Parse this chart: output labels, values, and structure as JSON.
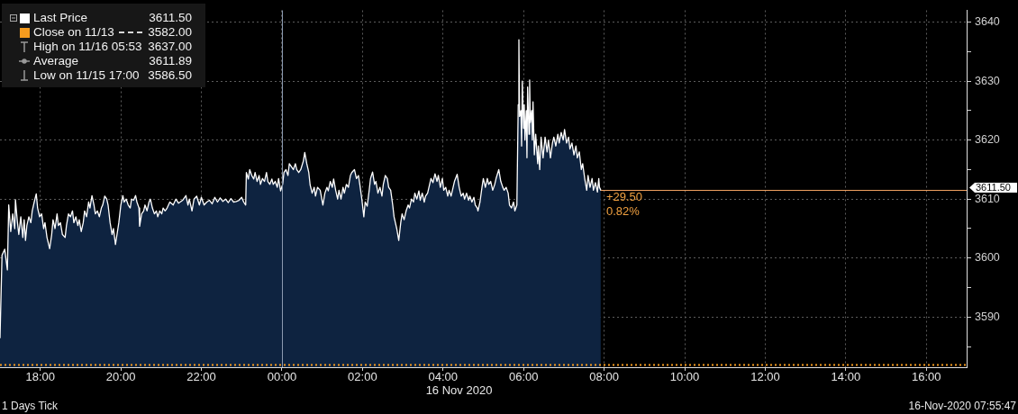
{
  "chart_data": {
    "type": "area",
    "x": [
      "2020-11-15T17:00",
      "2020-11-15T17:03",
      "2020-11-15T17:07",
      "2020-11-15T17:11",
      "2020-11-15T17:13",
      "2020-11-15T17:16",
      "2020-11-15T17:19",
      "2020-11-15T17:22",
      "2020-11-15T17:23",
      "2020-11-15T17:26",
      "2020-11-15T17:28",
      "2020-11-15T17:31",
      "2020-11-15T17:34",
      "2020-11-15T17:36",
      "2020-11-15T17:38",
      "2020-11-15T17:40",
      "2020-11-15T17:43",
      "2020-11-15T17:46",
      "2020-11-15T17:48",
      "2020-11-15T17:51",
      "2020-11-15T17:54",
      "2020-11-15T17:56",
      "2020-11-15T17:59",
      "2020-11-15T18:02",
      "2020-11-15T18:05",
      "2020-11-15T18:07",
      "2020-11-15T18:10",
      "2020-11-15T18:14",
      "2020-11-15T18:17",
      "2020-11-15T18:19",
      "2020-11-15T18:22",
      "2020-11-15T18:25",
      "2020-11-15T18:27",
      "2020-11-15T18:30",
      "2020-11-15T18:33",
      "2020-11-15T18:37",
      "2020-11-15T18:39",
      "2020-11-15T18:42",
      "2020-11-15T18:45",
      "2020-11-15T18:48",
      "2020-11-15T18:50",
      "2020-11-15T18:53",
      "2020-11-15T18:56",
      "2020-11-15T18:58",
      "2020-11-15T19:01",
      "2020-11-15T19:04",
      "2020-11-15T19:06",
      "2020-11-15T19:09",
      "2020-11-15T19:12",
      "2020-11-15T19:14",
      "2020-11-15T19:17",
      "2020-11-15T19:20",
      "2020-11-15T19:22",
      "2020-11-15T19:25",
      "2020-11-15T19:28",
      "2020-11-15T19:31",
      "2020-11-15T19:33",
      "2020-11-15T19:36",
      "2020-11-15T19:39",
      "2020-11-15T19:41",
      "2020-11-15T19:44",
      "2020-11-15T19:47",
      "2020-11-15T19:49",
      "2020-11-15T19:52",
      "2020-11-15T19:55",
      "2020-11-15T19:57",
      "2020-11-15T20:00",
      "2020-11-15T20:03",
      "2020-11-15T20:05",
      "2020-11-15T20:08",
      "2020-11-15T20:11",
      "2020-11-15T20:14",
      "2020-11-15T20:16",
      "2020-11-15T20:19",
      "2020-11-15T20:22",
      "2020-11-15T20:24",
      "2020-11-15T20:27",
      "2020-11-15T20:28",
      "2020-11-15T20:31",
      "2020-11-15T20:34",
      "2020-11-15T20:36",
      "2020-11-15T20:39",
      "2020-11-15T20:42",
      "2020-11-15T20:44",
      "2020-11-15T20:47",
      "2020-11-15T20:50",
      "2020-11-15T20:53",
      "2020-11-15T20:55",
      "2020-11-15T20:58",
      "2020-11-15T21:01",
      "2020-11-15T21:03",
      "2020-11-15T21:06",
      "2020-11-15T21:09",
      "2020-11-15T21:13",
      "2020-11-15T21:18",
      "2020-11-15T21:22",
      "2020-11-15T21:26",
      "2020-11-15T21:32",
      "2020-11-15T21:37",
      "2020-11-15T21:40",
      "2020-11-15T21:42",
      "2020-11-15T21:46",
      "2020-11-15T21:49",
      "2020-11-15T21:53",
      "2020-11-15T21:57",
      "2020-11-15T22:00",
      "2020-11-15T22:04",
      "2020-11-15T22:08",
      "2020-11-15T22:12",
      "2020-11-15T22:16",
      "2020-11-15T22:20",
      "2020-11-15T22:24",
      "2020-11-15T22:28",
      "2020-11-15T22:32",
      "2020-11-15T22:36",
      "2020-11-15T22:40",
      "2020-11-15T22:44",
      "2020-11-15T22:48",
      "2020-11-15T22:52",
      "2020-11-15T22:56",
      "2020-11-15T23:00",
      "2020-11-15T23:03",
      "2020-11-15T23:06",
      "2020-11-15T23:07",
      "2020-11-15T23:10",
      "2020-11-15T23:12",
      "2020-11-15T23:15",
      "2020-11-15T23:18",
      "2020-11-15T23:20",
      "2020-11-15T23:23",
      "2020-11-15T23:26",
      "2020-11-15T23:28",
      "2020-11-15T23:31",
      "2020-11-15T23:34",
      "2020-11-15T23:37",
      "2020-11-15T23:39",
      "2020-11-15T23:42",
      "2020-11-15T23:45",
      "2020-11-15T23:47",
      "2020-11-15T23:50",
      "2020-11-15T23:53",
      "2020-11-15T23:55",
      "2020-11-15T23:58",
      "2020-11-16T00:01",
      "2020-11-16T00:03",
      "2020-11-16T00:06",
      "2020-11-16T00:09",
      "2020-11-16T00:11",
      "2020-11-16T00:14",
      "2020-11-16T00:17",
      "2020-11-16T00:20",
      "2020-11-16T00:22",
      "2020-11-16T00:25",
      "2020-11-16T00:28",
      "2020-11-16T00:32",
      "2020-11-16T00:34",
      "2020-11-16T00:37",
      "2020-11-16T00:40",
      "2020-11-16T00:42",
      "2020-11-16T00:45",
      "2020-11-16T00:48",
      "2020-11-16T00:50",
      "2020-11-16T00:53",
      "2020-11-16T00:57",
      "2020-11-16T01:01",
      "2020-11-16T01:04",
      "2020-11-16T01:07",
      "2020-11-16T01:09",
      "2020-11-16T01:12",
      "2020-11-16T01:15",
      "2020-11-16T01:17",
      "2020-11-16T01:20",
      "2020-11-16T01:23",
      "2020-11-16T01:25",
      "2020-11-16T01:28",
      "2020-11-16T01:31",
      "2020-11-16T01:33",
      "2020-11-16T01:36",
      "2020-11-16T01:39",
      "2020-11-16T01:42",
      "2020-11-16T01:44",
      "2020-11-16T01:48",
      "2020-11-16T01:51",
      "2020-11-16T01:54",
      "2020-11-16T01:56",
      "2020-11-16T01:59",
      "2020-11-16T02:02",
      "2020-11-16T02:04",
      "2020-11-16T02:07",
      "2020-11-16T02:10",
      "2020-11-16T02:12",
      "2020-11-16T02:15",
      "2020-11-16T02:18",
      "2020-11-16T02:20",
      "2020-11-16T02:23",
      "2020-11-16T02:26",
      "2020-11-16T02:29",
      "2020-11-16T02:31",
      "2020-11-16T02:34",
      "2020-11-16T02:37",
      "2020-11-16T02:39",
      "2020-11-16T02:42",
      "2020-11-16T02:45",
      "2020-11-16T02:47",
      "2020-11-16T02:51",
      "2020-11-16T02:54",
      "2020-11-16T02:57",
      "2020-11-16T02:59",
      "2020-11-16T03:02",
      "2020-11-16T03:05",
      "2020-11-16T03:08",
      "2020-11-16T03:10",
      "2020-11-16T03:13",
      "2020-11-16T03:16",
      "2020-11-16T03:18",
      "2020-11-16T03:21",
      "2020-11-16T03:24",
      "2020-11-16T03:26",
      "2020-11-16T03:29",
      "2020-11-16T03:32",
      "2020-11-16T03:34",
      "2020-11-16T03:37",
      "2020-11-16T03:40",
      "2020-11-16T03:42",
      "2020-11-16T03:45",
      "2020-11-16T03:48",
      "2020-11-16T03:51",
      "2020-11-16T03:53",
      "2020-11-16T03:56",
      "2020-11-16T03:59",
      "2020-11-16T04:01",
      "2020-11-16T04:04",
      "2020-11-16T04:07",
      "2020-11-16T04:09",
      "2020-11-16T04:12",
      "2020-11-16T04:15",
      "2020-11-16T04:17",
      "2020-11-16T04:21",
      "2020-11-16T04:24",
      "2020-11-16T04:27",
      "2020-11-16T04:30",
      "2020-11-16T04:32",
      "2020-11-16T04:35",
      "2020-11-16T04:38",
      "2020-11-16T04:40",
      "2020-11-16T04:43",
      "2020-11-16T04:46",
      "2020-11-16T04:48",
      "2020-11-16T04:51",
      "2020-11-16T04:52",
      "2020-11-16T04:55",
      "2020-11-16T04:58",
      "2020-11-16T05:00",
      "2020-11-16T05:03",
      "2020-11-16T05:06",
      "2020-11-16T05:08",
      "2020-11-16T05:11",
      "2020-11-16T05:14",
      "2020-11-16T05:17",
      "2020-11-16T05:19",
      "2020-11-16T05:23",
      "2020-11-16T05:26",
      "2020-11-16T05:29",
      "2020-11-16T05:31",
      "2020-11-16T05:34",
      "2020-11-16T05:37",
      "2020-11-16T05:39",
      "2020-11-16T05:42",
      "2020-11-16T05:45",
      "2020-11-16T05:47",
      "2020-11-16T05:50",
      "2020-11-16T05:52",
      "2020-11-16T05:53",
      "2020-11-16T05:54",
      "2020-11-16T05:56",
      "2020-11-16T05:57",
      "2020-11-16T05:58",
      "2020-11-16T06:00",
      "2020-11-16T06:01",
      "2020-11-16T06:02",
      "2020-11-16T06:04",
      "2020-11-16T06:05",
      "2020-11-16T06:06",
      "2020-11-16T06:08",
      "2020-11-16T06:09",
      "2020-11-16T06:10",
      "2020-11-16T06:12",
      "2020-11-16T06:13",
      "2020-11-16T06:14",
      "2020-11-16T06:16",
      "2020-11-16T06:18",
      "2020-11-16T06:21",
      "2020-11-16T06:22",
      "2020-11-16T06:24",
      "2020-11-16T06:26",
      "2020-11-16T06:29",
      "2020-11-16T06:32",
      "2020-11-16T06:35",
      "2020-11-16T06:37",
      "2020-11-16T06:40",
      "2020-11-16T06:43",
      "2020-11-16T06:45",
      "2020-11-16T06:48",
      "2020-11-16T06:51",
      "2020-11-16T06:53",
      "2020-11-16T06:56",
      "2020-11-16T06:59",
      "2020-11-16T07:01",
      "2020-11-16T07:04",
      "2020-11-16T07:07",
      "2020-11-16T07:09",
      "2020-11-16T07:12",
      "2020-11-16T07:15",
      "2020-11-16T07:18",
      "2020-11-16T07:20",
      "2020-11-16T07:23",
      "2020-11-16T07:26",
      "2020-11-16T07:28",
      "2020-11-16T07:31",
      "2020-11-16T07:34",
      "2020-11-16T07:36",
      "2020-11-16T07:39",
      "2020-11-16T07:42",
      "2020-11-16T07:44",
      "2020-11-16T07:47",
      "2020-11-16T07:50",
      "2020-11-16T07:52",
      "2020-11-16T07:53",
      "2020-11-16T07:55"
    ],
    "series": [
      {
        "name": "Last Price",
        "color": "#ffffff",
        "values": [
          3586.5,
          3600.5,
          3601.5,
          3598,
          3609,
          3604.5,
          3607.5,
          3605,
          3609.9,
          3606,
          3604,
          3607,
          3603.5,
          3606.5,
          3603,
          3605.5,
          3607,
          3606,
          3608,
          3609.5,
          3610.9,
          3608.5,
          3607,
          3607.5,
          3605,
          3606,
          3603.5,
          3601.6,
          3604,
          3606.5,
          3605,
          3607.5,
          3605.5,
          3606,
          3604,
          3603.5,
          3605.5,
          3607.5,
          3607,
          3608,
          3606,
          3607,
          3605.5,
          3606.5,
          3604.5,
          3606,
          3608,
          3607,
          3609.5,
          3608.5,
          3610.6,
          3609,
          3607.5,
          3608,
          3607,
          3608.5,
          3609,
          3610.5,
          3610,
          3609,
          3606,
          3604,
          3605,
          3602.3,
          3604.5,
          3606,
          3609,
          3610.6,
          3609.5,
          3610,
          3609,
          3608.5,
          3610,
          3609.8,
          3610.6,
          3609.5,
          3608.5,
          3605.4,
          3607.5,
          3608,
          3609,
          3608,
          3609.5,
          3610,
          3608.5,
          3607.5,
          3608,
          3607,
          3608,
          3607.5,
          3608.5,
          3608,
          3608.5,
          3609.5,
          3609,
          3610,
          3609.3,
          3609.8,
          3610.6,
          3609,
          3610,
          3608,
          3610,
          3610.5,
          3609,
          3610.3,
          3609,
          3609.5,
          3609.8,
          3609.2,
          3610.3,
          3609.5,
          3610.2,
          3609.6,
          3610,
          3609.4,
          3610.1,
          3609.5,
          3609.6,
          3609.8,
          3610.3,
          3609.5,
          3609,
          3614.5,
          3613.4,
          3615,
          3614,
          3613.4,
          3614.5,
          3613,
          3614,
          3612.5,
          3613.5,
          3613,
          3614.5,
          3613,
          3612.5,
          3613.4,
          3612.5,
          3613,
          3612,
          3613.5,
          3611.4,
          3612.5,
          3614.5,
          3615,
          3614,
          3616,
          3615.5,
          3615,
          3616,
          3615,
          3614.5,
          3615,
          3616.5,
          3617.9,
          3616,
          3614.5,
          3612.4,
          3611,
          3612,
          3610.5,
          3612,
          3611.5,
          3609,
          3611,
          3612,
          3611.4,
          3613,
          3612,
          3613.4,
          3611.5,
          3610,
          3611.5,
          3610,
          3612,
          3611,
          3612.5,
          3612,
          3614,
          3614.5,
          3615,
          3613.5,
          3614,
          3612.5,
          3610,
          3607,
          3609.5,
          3608.8,
          3611.5,
          3613.5,
          3614.6,
          3612.5,
          3613,
          3611,
          3612,
          3610.5,
          3612.5,
          3614,
          3613.5,
          3612,
          3611.5,
          3609,
          3607,
          3605,
          3603,
          3606,
          3607.5,
          3606.5,
          3608,
          3609,
          3608.5,
          3610,
          3609.5,
          3611,
          3610,
          3611.4,
          3609.8,
          3611,
          3609.5,
          3610.5,
          3611,
          3612.5,
          3613.5,
          3612.8,
          3614.3,
          3613,
          3614,
          3612,
          3613.5,
          3611.5,
          3612,
          3610.5,
          3611.5,
          3610.5,
          3612,
          3613,
          3614.2,
          3612,
          3610.5,
          3611,
          3610,
          3611,
          3609.8,
          3610.5,
          3609.5,
          3610.3,
          3609,
          3608.5,
          3608,
          3609.5,
          3612,
          3613.5,
          3612,
          3613.5,
          3612.5,
          3613,
          3611.5,
          3612.5,
          3613.5,
          3615,
          3613,
          3612,
          3611.5,
          3612,
          3611,
          3609,
          3608.5,
          3609.5,
          3608,
          3609,
          3626,
          3637,
          3624,
          3625,
          3619,
          3630,
          3622,
          3626,
          3620,
          3625,
          3617,
          3629,
          3621,
          3630.2,
          3623,
          3625,
          3620,
          3626.5,
          3617.5,
          3621,
          3616,
          3619,
          3615,
          3620.5,
          3617,
          3620.5,
          3618,
          3620,
          3617,
          3619.5,
          3620.5,
          3619,
          3621,
          3619.5,
          3621.3,
          3620,
          3621.8,
          3619.5,
          3620.5,
          3618.5,
          3619.5,
          3617.5,
          3619,
          3617,
          3618,
          3615,
          3616,
          3613.5,
          3611.5,
          3614,
          3612,
          3613.5,
          3611.5,
          3612.8,
          3611.2,
          3613.5,
          3612,
          3611.5
        ]
      }
    ],
    "xlim": [
      "2020-11-15T17:00",
      "2020-11-16T17:00"
    ],
    "xticks": [
      {
        "value": "2020-11-15T18:00",
        "label": "18:00"
      },
      {
        "value": "2020-11-15T20:00",
        "label": "20:00"
      },
      {
        "value": "2020-11-15T22:00",
        "label": "22:00"
      },
      {
        "value": "2020-11-16T00:00",
        "label": "00:00"
      },
      {
        "value": "2020-11-16T02:00",
        "label": "02:00"
      },
      {
        "value": "2020-11-16T04:00",
        "label": "04:00"
      },
      {
        "value": "2020-11-16T06:00",
        "label": "06:00"
      },
      {
        "value": "2020-11-16T08:00",
        "label": "08:00"
      },
      {
        "value": "2020-11-16T10:00",
        "label": "10:00"
      },
      {
        "value": "2020-11-16T12:00",
        "label": "12:00"
      },
      {
        "value": "2020-11-16T14:00",
        "label": "14:00"
      },
      {
        "value": "2020-11-16T16:00",
        "label": "16:00"
      }
    ],
    "xlabel": "16 Nov 2020",
    "ylim": [
      3581.5,
      3642
    ],
    "yticks": [
      {
        "value": 3585,
        "label": null
      },
      3590,
      {
        "value": 3595,
        "label": null
      },
      3600,
      {
        "value": 3605,
        "label": null
      },
      3610,
      {
        "value": 3615,
        "label": null
      },
      3620,
      {
        "value": 3625,
        "label": null
      },
      3630,
      {
        "value": 3635,
        "label": null
      },
      3640
    ],
    "grid": true,
    "legend": "top left",
    "ref_lines": [
      {
        "axis": "y",
        "value": 3582,
        "label": "Close on 11/13 3582.00",
        "color": "#f59b1e",
        "line_style": "dotted"
      },
      {
        "axis": "y",
        "value": 3611.5,
        "label": "3611.50",
        "color": "#f0a060"
      },
      {
        "axis": "x",
        "value": "2020-11-16T00:00",
        "color": "#8c9ab0"
      }
    ],
    "annotations": [
      "High on 11/16 05:53 3637.00",
      "Average 3611.89",
      "Low on 11/15 17:00 3586.50",
      {
        "text": "+29.50",
        "x": "2020-11-16T07:55",
        "y": 3611.5
      },
      {
        "text": "0.82%",
        "x": "2020-11-16T07:55",
        "y": 3611.5
      },
      "1 Days Tick",
      "16-Nov-2020 07:55:47"
    ]
  }
}
